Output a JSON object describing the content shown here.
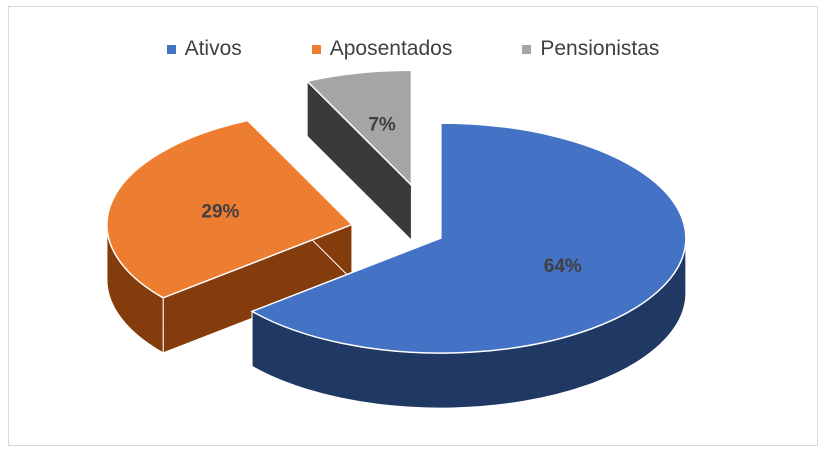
{
  "chart_data": {
    "type": "pie",
    "categories": [
      "Ativos",
      "Aposentados",
      "Pensionistas"
    ],
    "values": [
      64,
      29,
      7
    ],
    "labels": [
      "64%",
      "29%",
      "7%"
    ],
    "legend_position": "top",
    "colors": [
      "#4472c4",
      "#ed7d31",
      "#a5a5a5"
    ],
    "side_colors": [
      "#203864",
      "#843c0c",
      "#3a3a3a"
    ],
    "exploded": true,
    "three_d": true
  }
}
